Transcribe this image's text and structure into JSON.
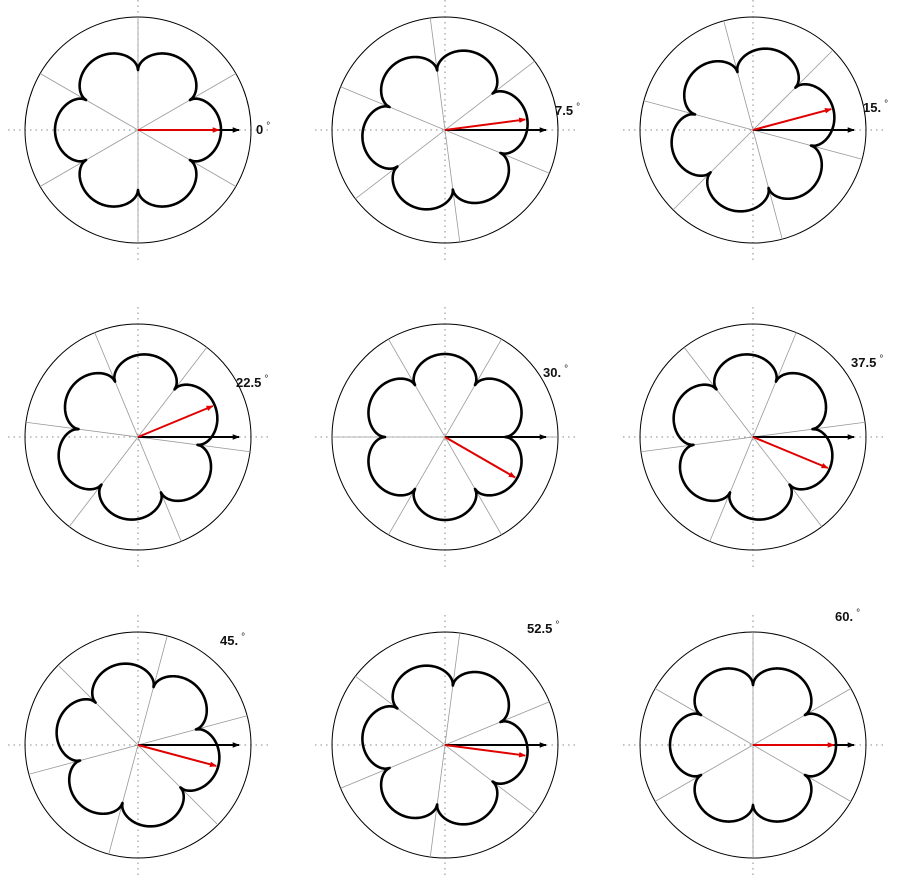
{
  "panels": [
    {
      "angle": 0,
      "label": "0"
    },
    {
      "angle": 7.5,
      "label": "7.5"
    },
    {
      "angle": 15,
      "label": "15."
    },
    {
      "angle": 22.5,
      "label": "22.5"
    },
    {
      "angle": 30,
      "label": "30."
    },
    {
      "angle": 37.5,
      "label": "37.5"
    },
    {
      "angle": 45,
      "label": "45."
    },
    {
      "angle": 52.5,
      "label": "52.5"
    },
    {
      "angle": 60,
      "label": "60."
    }
  ],
  "degree_symbol": "°",
  "lobes": 6,
  "colors": {
    "outer_circle": "#000000",
    "curve": "#000000",
    "symmetry_lines": "#999999",
    "dotted_axes": "#888888",
    "black_arrow": "#000000",
    "red_arrow": "#e00000"
  }
}
